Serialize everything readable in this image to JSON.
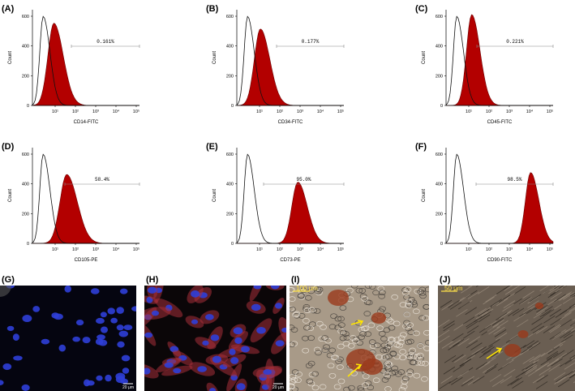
{
  "panels": [
    {
      "label": "(A)",
      "y_axis_label": "Count",
      "x_axis_label": "CD14-FITC",
      "gate": "0.161%",
      "yticks": [
        "0",
        "200",
        "400",
        "600"
      ],
      "xticks": [
        "10¹",
        "10²",
        "10³",
        "10⁴",
        "10⁵"
      ]
    },
    {
      "label": "(B)",
      "y_axis_label": "Count",
      "x_axis_label": "CD34-FITC",
      "gate": "0.177%",
      "yticks": [
        "0",
        "200",
        "400",
        "600"
      ],
      "xticks": [
        "10¹",
        "10²",
        "10³",
        "10⁴",
        "10⁵"
      ]
    },
    {
      "label": "(C)",
      "y_axis_label": "Count",
      "x_axis_label": "CD45-FITC",
      "gate": "0.221%",
      "yticks": [
        "0",
        "200",
        "400",
        "600"
      ],
      "xticks": [
        "10¹",
        "10²",
        "10³",
        "10⁴",
        "10⁵"
      ]
    },
    {
      "label": "(D)",
      "y_axis_label": "Count",
      "x_axis_label": "CD105-PE",
      "gate": "58.4%",
      "yticks": [
        "0",
        "200",
        "400",
        "600"
      ],
      "xticks": [
        "10¹",
        "10²",
        "10³",
        "10⁴",
        "10⁵"
      ]
    },
    {
      "label": "(E)",
      "y_axis_label": "Count",
      "x_axis_label": "CD73-PE",
      "gate": "95.0%",
      "yticks": [
        "0",
        "200",
        "400",
        "600"
      ],
      "xticks": [
        "10¹",
        "10²",
        "10³",
        "10⁴",
        "10⁵"
      ]
    },
    {
      "label": "(F)",
      "y_axis_label": "Count",
      "x_axis_label": "CD90-FITC",
      "gate": "98.5%",
      "yticks": [
        "0",
        "200",
        "400",
        "600"
      ],
      "xticks": [
        "10¹",
        "10²",
        "10³",
        "10⁴",
        "10⁵"
      ]
    }
  ],
  "images": [
    {
      "label": "(G)",
      "scale_bar": "20 μm"
    },
    {
      "label": "(H)",
      "scale_bar": "20 μm"
    },
    {
      "label": "(I)",
      "scale_bar": "100 μm"
    },
    {
      "label": "(J)",
      "scale_bar": "50 μm"
    }
  ]
}
